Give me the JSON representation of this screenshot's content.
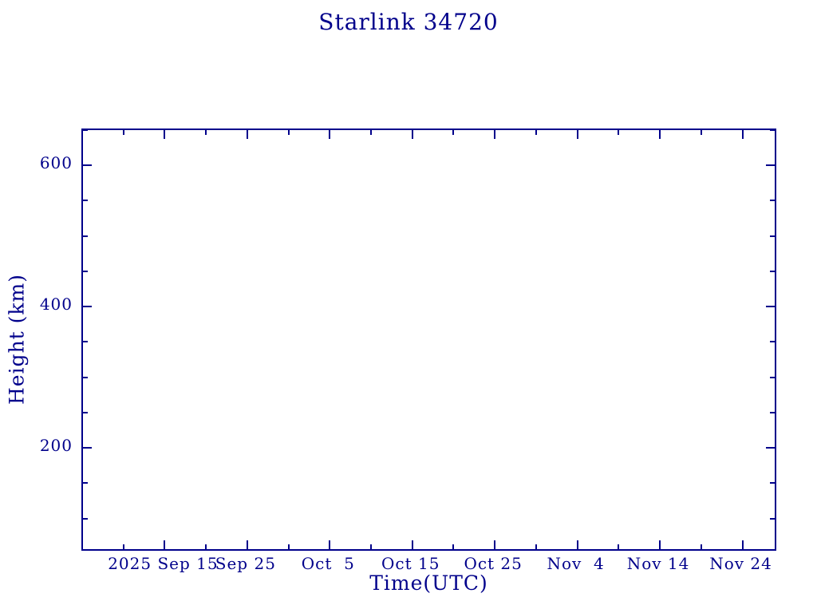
{
  "colors": {
    "ink": "#00008B",
    "background": "#ffffff"
  },
  "chart_data": {
    "type": "line",
    "title": "Starlink 34720",
    "xlabel": "Time(UTC)",
    "ylabel": "Height (km)",
    "x_axis": {
      "kind": "time",
      "unit": "day_of_year_2025",
      "min": 248.1,
      "max": 332.3,
      "major_ticks": [
        {
          "value": 258,
          "label": "2025 Sep 15"
        },
        {
          "value": 268,
          "label": "Sep 25"
        },
        {
          "value": 278,
          "label": "Oct  5"
        },
        {
          "value": 288,
          "label": "Oct 15"
        },
        {
          "value": 298,
          "label": "Oct 25"
        },
        {
          "value": 308,
          "label": "Nov  4"
        },
        {
          "value": 318,
          "label": "Nov 14"
        },
        {
          "value": 328,
          "label": "Nov 24"
        }
      ],
      "minor_ticks": [
        253,
        263,
        273,
        283,
        293,
        303,
        313,
        323
      ]
    },
    "y_axis": {
      "min": 52,
      "max": 650,
      "major_ticks": [
        {
          "value": 200,
          "label": "200"
        },
        {
          "value": 400,
          "label": "400"
        },
        {
          "value": 600,
          "label": "600"
        }
      ],
      "minor_ticks": [
        100,
        150,
        250,
        300,
        350,
        450,
        500,
        550,
        650
      ]
    },
    "series": [],
    "grid": false,
    "legend": null
  }
}
